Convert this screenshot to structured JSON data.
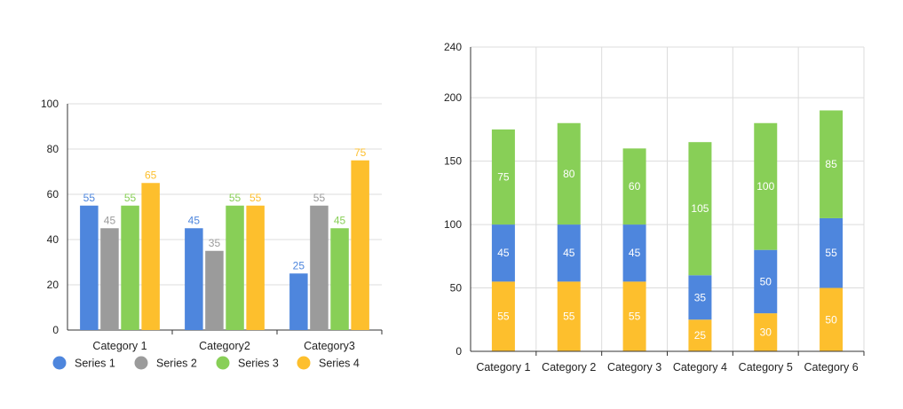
{
  "chart_data": [
    {
      "type": "bar",
      "categories": [
        "Category 1",
        "Category2",
        "Category3"
      ],
      "series": [
        {
          "name": "Series 1",
          "values": [
            55,
            45,
            25
          ],
          "color": "#4e86dd"
        },
        {
          "name": "Series 2",
          "values": [
            45,
            35,
            55
          ],
          "color": "#9b9b9b"
        },
        {
          "name": "Series 3",
          "values": [
            55,
            55,
            45
          ],
          "color": "#88cf57"
        },
        {
          "name": "Series 4",
          "values": [
            65,
            55,
            75
          ],
          "color": "#fdbf2d"
        }
      ],
      "ylim": [
        0,
        100
      ],
      "yticks": [
        0,
        20,
        40,
        60,
        80,
        100
      ],
      "grid": true,
      "legend": "bottom-left",
      "data_labels": true
    },
    {
      "type": "stacked-bar",
      "categories": [
        "Category 1",
        "Category 2",
        "Category 3",
        "Category 4",
        "Category 5",
        "Category 6"
      ],
      "series": [
        {
          "values": [
            55,
            55,
            55,
            25,
            30,
            50
          ],
          "color": "#fdbf2d"
        },
        {
          "values": [
            45,
            45,
            45,
            35,
            50,
            55
          ],
          "color": "#4e86dd"
        },
        {
          "values": [
            75,
            80,
            60,
            105,
            100,
            85
          ],
          "color": "#88cf57"
        }
      ],
      "ylim": [
        0,
        240
      ],
      "yticks": [
        0,
        50,
        100,
        150,
        200,
        240
      ],
      "grid": true,
      "data_labels": true
    }
  ]
}
